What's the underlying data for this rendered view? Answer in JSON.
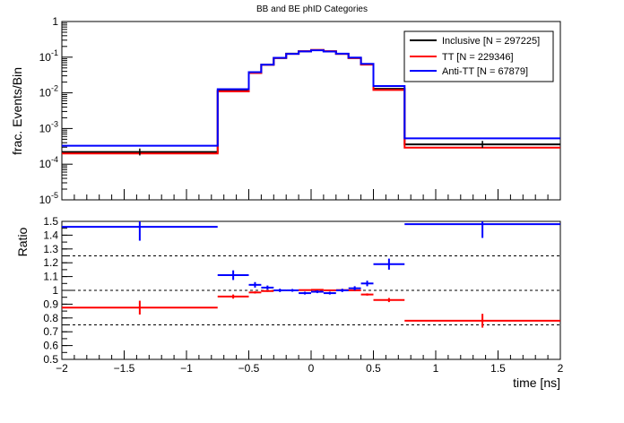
{
  "title": "BB and BE phID Categories",
  "chart_data": [
    {
      "type": "line",
      "step": true,
      "ylabel": "frac. Events/Bin",
      "yscale": "log",
      "ylim": [
        1e-05,
        1
      ],
      "xlim": [
        -2,
        2
      ],
      "ytick_labels": [
        "10^-5",
        "10^-4",
        "10^-3",
        "10^-2",
        "10^-1",
        "1"
      ],
      "bin_edges": [
        -2,
        -0.75,
        -0.5,
        -0.4,
        -0.3,
        -0.2,
        -0.1,
        0,
        0.1,
        0.2,
        0.3,
        0.4,
        0.5,
        0.75,
        2
      ],
      "legend": {
        "position": "top-right"
      },
      "series": [
        {
          "name": "Inclusive [N = 297225]",
          "color": "#000000",
          "values": [
            0.00022,
            0.0115,
            0.036,
            0.061,
            0.095,
            0.125,
            0.146,
            0.158,
            0.146,
            0.124,
            0.095,
            0.063,
            0.013,
            0.00036
          ]
        },
        {
          "name": "TT [N = 229346]",
          "color": "#ff0000",
          "values": [
            0.0002,
            0.011,
            0.036,
            0.061,
            0.095,
            0.124,
            0.147,
            0.159,
            0.147,
            0.124,
            0.095,
            0.062,
            0.012,
            0.00029
          ]
        },
        {
          "name": "Anti-TT [N = 67879]",
          "color": "#0000ff",
          "values": [
            0.00033,
            0.0127,
            0.038,
            0.062,
            0.096,
            0.124,
            0.145,
            0.156,
            0.144,
            0.125,
            0.097,
            0.065,
            0.0155,
            0.00053
          ]
        }
      ]
    },
    {
      "type": "scatter",
      "ylabel": "Ratio",
      "xlabel": "time [ns]",
      "ylim": [
        0.5,
        1.5
      ],
      "xlim": [
        -2,
        2
      ],
      "yticks": [
        0.5,
        0.6,
        0.7,
        0.8,
        0.9,
        1,
        1.1,
        1.2,
        1.3,
        1.4,
        1.5
      ],
      "xticks": [
        -2,
        -1.5,
        -1,
        -0.5,
        0,
        0.5,
        1,
        1.5,
        2
      ],
      "reference_lines": [
        0.75,
        1,
        1.25
      ],
      "x_centers": [
        -1.375,
        -0.625,
        -0.45,
        -0.35,
        -0.25,
        -0.15,
        -0.05,
        0.05,
        0.15,
        0.25,
        0.35,
        0.45,
        0.625,
        1.375
      ],
      "x_halfwidths": [
        0.625,
        0.125,
        0.05,
        0.05,
        0.05,
        0.05,
        0.05,
        0.05,
        0.05,
        0.05,
        0.05,
        0.05,
        0.125,
        0.625
      ],
      "series": [
        {
          "color": "#ff0000",
          "values": [
            0.875,
            0.955,
            0.985,
            0.995,
            1.0,
            1.0,
            1.002,
            1.004,
            1.0,
            1.002,
            1.0,
            0.97,
            0.93,
            0.78
          ],
          "errors": [
            0.05,
            0.015,
            0.008,
            0.006,
            0.005,
            0.004,
            0.004,
            0.004,
            0.004,
            0.005,
            0.006,
            0.008,
            0.015,
            0.05
          ]
        },
        {
          "color": "#0000ff",
          "values": [
            1.46,
            1.11,
            1.04,
            1.02,
            1.0,
            1.0,
            0.98,
            0.99,
            0.98,
            1.0,
            1.015,
            1.05,
            1.19,
            1.48
          ],
          "errors": [
            0.1,
            0.035,
            0.02,
            0.015,
            0.012,
            0.01,
            0.01,
            0.01,
            0.01,
            0.012,
            0.015,
            0.02,
            0.04,
            0.1
          ]
        }
      ]
    }
  ]
}
